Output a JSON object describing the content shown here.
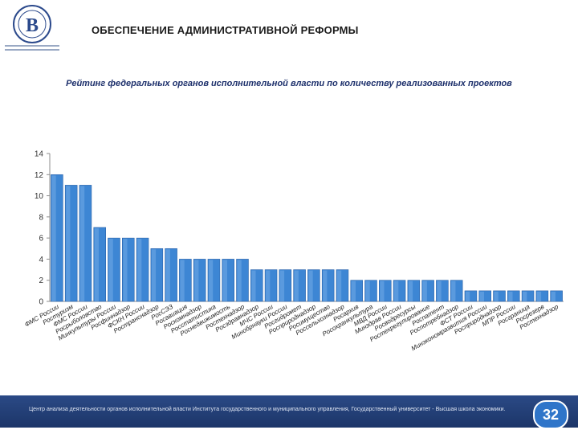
{
  "header": {
    "title": "ОБЕСПЕЧЕНИЕ АДМИНИСТРАТИВНОЙ РЕФОРМЫ"
  },
  "footer": {
    "text": "Центр анализа деятельности органов исполнительной власти Института государственного и муниципального управления, Государственный университет - Высшая школа экономики.",
    "page_number": "32"
  },
  "chart_data": {
    "type": "bar",
    "title": "Рейтинг федеральных органов исполнительной власти по количеству реализованных проектов",
    "xlabel": "",
    "ylabel": "",
    "ylim": [
      0,
      14
    ],
    "yticks": [
      0,
      2,
      4,
      6,
      8,
      10,
      12,
      14
    ],
    "grid": false,
    "bar_color": "#3d86d4",
    "categories": [
      "ФМС России",
      "Ростуризм",
      "ФМС России",
      "Росрыболовство",
      "Минкультуры России",
      "Росфиннадзор",
      "ФСКН России",
      "Ространснадзор",
      "РосСЭЗ",
      "Росавиация",
      "Роскомнадзор",
      "Росстатистика",
      "Роснедвижимость",
      "Ростехнадзор",
      "Росздравнадзор",
      "МЧС России",
      "Минобрнауки России",
      "Росгидромет",
      "Росприроднадзор",
      "Росимущество",
      "Россельхознадзор",
      "Росархив",
      "Росохранкультура",
      "МВД России",
      "Минздрав России",
      "Росводресурсы",
      "Ростехрегулирование",
      "Роспатент",
      "Роспотребнадзор",
      "ФСТ России",
      "Минэкономразвития России",
      "Росприроднадзор",
      "МПР России",
      "Росграница",
      "Росрезерв",
      "Ростехнадзор"
    ],
    "values": [
      12,
      11,
      11,
      7,
      6,
      6,
      6,
      5,
      5,
      4,
      4,
      4,
      4,
      4,
      3,
      3,
      3,
      3,
      3,
      3,
      3,
      2,
      2,
      2,
      2,
      2,
      2,
      2,
      2,
      1,
      1,
      1,
      1,
      1,
      1,
      1
    ]
  }
}
